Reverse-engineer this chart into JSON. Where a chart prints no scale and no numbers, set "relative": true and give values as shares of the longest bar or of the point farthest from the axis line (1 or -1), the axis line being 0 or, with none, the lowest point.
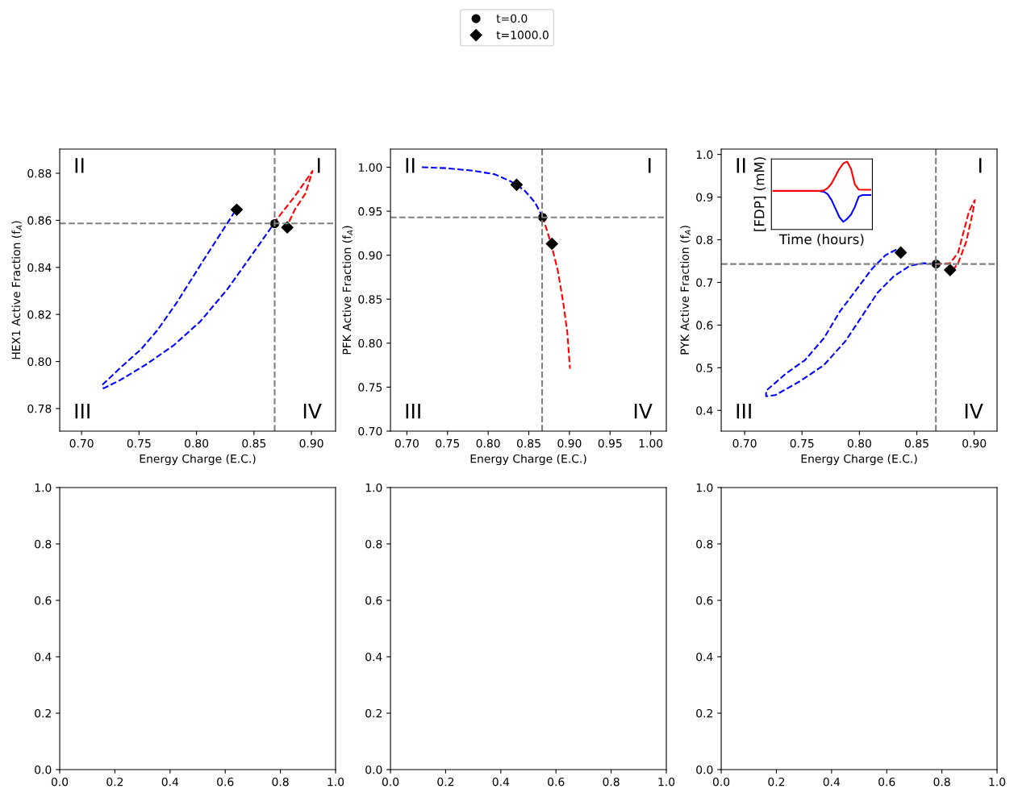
{
  "chart_data": [
    {
      "type": "line",
      "xlabel": "Energy Charge (E.C.)",
      "ylabel": "HEX1 Active Fraction (f$_{A}$)",
      "legend": "top",
      "xlim": [
        0.681,
        0.921
      ],
      "ylim": [
        0.7704,
        0.8903
      ],
      "xticks": [
        {
          "value": 0.7,
          "label": "0.70"
        },
        {
          "value": 0.75,
          "label": "0.75"
        },
        {
          "value": 0.8,
          "label": "0.80"
        },
        {
          "value": 0.85,
          "label": "0.85"
        },
        {
          "value": 0.9,
          "label": "0.90"
        }
      ],
      "yticks": [
        {
          "value": 0.78,
          "label": "0.78"
        },
        {
          "value": 0.8,
          "label": "0.80"
        },
        {
          "value": 0.82,
          "label": "0.82"
        },
        {
          "value": 0.84,
          "label": "0.84"
        },
        {
          "value": 0.86,
          "label": "0.86"
        },
        {
          "value": 0.88,
          "label": "0.88"
        }
      ],
      "ref_lines": [
        {
          "axis": "x",
          "value": 0.868,
          "color": "#808080",
          "line_style": "dashed"
        },
        {
          "axis": "y",
          "value": 0.8587,
          "color": "#808080",
          "line_style": "dashed"
        }
      ],
      "annotations": [
        "II",
        "I",
        "III",
        "IV"
      ],
      "series": [
        {
          "type": "line",
          "color": "#0000ff",
          "line_style": "dashed",
          "x": [
            0.8335,
            0.827,
            0.806,
            0.7824,
            0.766,
            0.752,
            0.7333,
            0.718,
            0.7192,
            0.7333,
            0.7567,
            0.78,
            0.8035,
            0.827,
            0.8503,
            0.8672
          ],
          "values": [
            0.8639,
            0.8589,
            0.843,
            0.8247,
            0.8133,
            0.8053,
            0.7971,
            0.79,
            0.7886,
            0.792,
            0.7989,
            0.8068,
            0.8171,
            0.8308,
            0.8468,
            0.8585
          ]
        },
        {
          "type": "line",
          "color": "#ff0000",
          "line_style": "dashed",
          "x": [
            0.8672,
            0.869,
            0.8855,
            0.901,
            0.8948,
            0.8855,
            0.8789
          ],
          "values": [
            0.8585,
            0.8599,
            0.8702,
            0.881,
            0.8714,
            0.8645,
            0.8576
          ]
        },
        {
          "type": "scatter",
          "name": "t=0.0",
          "color": "#000000",
          "marker": "circle",
          "x": [
            0.868
          ],
          "values": [
            0.8586
          ]
        },
        {
          "type": "scatter",
          "name": "t=1000.0",
          "color": "#000000",
          "marker": "diamond",
          "x": [
            0.835,
            0.879
          ],
          "values": [
            0.8645,
            0.857
          ]
        }
      ]
    },
    {
      "type": "line",
      "xlabel": "Energy Charge (E.C.)",
      "ylabel": "PFK Active Fraction (f$_{A}$)",
      "xlim": [
        0.6798,
        1.0192
      ],
      "ylim": [
        0.7,
        1.0207
      ],
      "xticks": [
        {
          "value": 0.7,
          "label": "0.70"
        },
        {
          "value": 0.75,
          "label": "0.75"
        },
        {
          "value": 0.8,
          "label": "0.80"
        },
        {
          "value": 0.85,
          "label": "0.85"
        },
        {
          "value": 0.9,
          "label": "0.90"
        },
        {
          "value": 0.95,
          "label": "0.95"
        },
        {
          "value": 1.0,
          "label": "1.00"
        }
      ],
      "yticks": [
        {
          "value": 0.7,
          "label": "0.70"
        },
        {
          "value": 0.75,
          "label": "0.75"
        },
        {
          "value": 0.8,
          "label": "0.80"
        },
        {
          "value": 0.85,
          "label": "0.85"
        },
        {
          "value": 0.9,
          "label": "0.90"
        },
        {
          "value": 0.95,
          "label": "0.95"
        },
        {
          "value": 1.0,
          "label": "1.00"
        }
      ],
      "ref_lines": [
        {
          "axis": "x",
          "value": 0.8664,
          "color": "#808080",
          "line_style": "dashed"
        },
        {
          "axis": "y",
          "value": 0.943,
          "color": "#808080",
          "line_style": "dashed"
        }
      ],
      "annotations": [
        "II",
        "I",
        "III",
        "IV"
      ],
      "series": [
        {
          "type": "line",
          "color": "#0000ff",
          "line_style": "dashed",
          "x": [
            0.7185,
            0.7483,
            0.7815,
            0.808,
            0.8278,
            0.8444,
            0.8576,
            0.8666
          ],
          "values": [
            1.0,
            0.999,
            0.996,
            0.992,
            0.984,
            0.974,
            0.96,
            0.944
          ]
        },
        {
          "type": "line",
          "color": "#ff0000",
          "line_style": "dashed",
          "x": [
            0.8666,
            0.8725,
            0.8791,
            0.8858,
            0.8924,
            0.8974,
            0.9007
          ],
          "values": [
            0.944,
            0.928,
            0.907,
            0.882,
            0.846,
            0.812,
            0.771
          ]
        },
        {
          "type": "scatter",
          "color": "#000000",
          "marker": "circle",
          "x": [
            0.867
          ],
          "values": [
            0.943
          ]
        },
        {
          "type": "scatter",
          "color": "#000000",
          "marker": "diamond",
          "x": [
            0.835,
            0.8785
          ],
          "values": [
            0.98,
            0.913
          ]
        }
      ]
    },
    {
      "type": "line",
      "xlabel": "Energy Charge (E.C.)",
      "ylabel": "PYK Active Fraction (f$_{A}$)",
      "xlim": [
        0.6796,
        0.9199
      ],
      "ylim": [
        0.3515,
        1.0126
      ],
      "xticks": [
        {
          "value": 0.7,
          "label": "0.70"
        },
        {
          "value": 0.75,
          "label": "0.75"
        },
        {
          "value": 0.8,
          "label": "0.80"
        },
        {
          "value": 0.85,
          "label": "0.85"
        },
        {
          "value": 0.9,
          "label": "0.90"
        }
      ],
      "yticks": [
        0.4,
        0.5,
        0.6,
        0.7,
        0.8,
        0.9,
        {
          "value": 1.0,
          "label": "1.0"
        }
      ],
      "ref_lines": [
        {
          "axis": "x",
          "value": 0.8666,
          "color": "#808080",
          "line_style": "dashed"
        },
        {
          "axis": "y",
          "value": 0.7431,
          "color": "#808080",
          "line_style": "dashed"
        }
      ],
      "annotations": [
        "II",
        "I",
        "III",
        "IV"
      ],
      "series": [
        {
          "type": "line",
          "color": "#0000ff",
          "line_style": "dashed",
          "x": [
            0.8322,
            0.8228,
            0.811,
            0.7971,
            0.783,
            0.769,
            0.7526,
            0.7363,
            0.7187,
            0.7187,
            0.7269,
            0.748,
            0.769,
            0.7877,
            0.8018,
            0.8158,
            0.8298,
            0.8439,
            0.8556,
            0.8666
          ],
          "values": [
            0.777,
            0.764,
            0.732,
            0.682,
            0.632,
            0.569,
            0.518,
            0.487,
            0.446,
            0.433,
            0.436,
            0.468,
            0.506,
            0.562,
            0.619,
            0.676,
            0.714,
            0.739,
            0.745,
            0.743
          ]
        },
        {
          "type": "line",
          "color": "#ff0000",
          "line_style": "dashed",
          "x": [
            0.8666,
            0.8789,
            0.886,
            0.8953,
            0.9005,
            0.8988,
            0.893,
            0.886,
            0.8813
          ],
          "values": [
            0.743,
            0.745,
            0.77,
            0.865,
            0.893,
            0.865,
            0.795,
            0.745,
            0.729
          ]
        },
        {
          "type": "scatter",
          "color": "#000000",
          "marker": "circle",
          "x": [
            0.8668
          ],
          "values": [
            0.743
          ]
        },
        {
          "type": "scatter",
          "color": "#000000",
          "marker": "diamond",
          "x": [
            0.836,
            0.879
          ],
          "values": [
            0.77,
            0.729
          ]
        }
      ]
    },
    {
      "type": "line",
      "relative": true,
      "tick_labels": false,
      "xlabel": "Time (hours)",
      "ylabel": "[FDP] (mM)",
      "categories": [
        null,
        null,
        null,
        null,
        null,
        null,
        null,
        null,
        null,
        null,
        null,
        null,
        null,
        null,
        null,
        null,
        null,
        null,
        null,
        null,
        null,
        null,
        null,
        null,
        null,
        null
      ],
      "series": [
        {
          "color": "#0000ff",
          "line_style": "solid",
          "values": [
            null,
            null,
            null,
            null,
            null,
            null,
            null,
            null,
            null,
            null,
            null,
            null,
            0.565,
            0.556,
            0.52,
            0.432,
            0.307,
            0.183,
            0.112,
            0.156,
            0.219,
            0.334,
            0.485,
            0.508,
            0.508,
            0.508
          ]
        },
        {
          "color": "#ff0000",
          "line_style": "solid",
          "values": [
            0.568,
            0.568,
            0.568,
            0.568,
            0.568,
            0.568,
            0.568,
            0.568,
            0.568,
            0.568,
            0.568,
            0.568,
            0.568,
            0.574,
            0.609,
            0.68,
            0.787,
            0.893,
            0.973,
            1.0,
            0.893,
            0.663,
            0.587,
            0.584,
            0.584,
            0.584
          ]
        }
      ]
    },
    {
      "type": "line",
      "xlim": [
        0,
        1
      ],
      "ylim": [
        0,
        1
      ],
      "xticks": [
        {
          "value": 0,
          "label": "0.0"
        },
        {
          "value": 0.2,
          "label": "0.2"
        },
        {
          "value": 0.4,
          "label": "0.4"
        },
        {
          "value": 0.6,
          "label": "0.6"
        },
        {
          "value": 0.8,
          "label": "0.8"
        },
        {
          "value": 1,
          "label": "1.0"
        }
      ],
      "yticks": [
        {
          "value": 0,
          "label": "0.0"
        },
        {
          "value": 0.2,
          "label": "0.2"
        },
        {
          "value": 0.4,
          "label": "0.4"
        },
        {
          "value": 0.6,
          "label": "0.6"
        },
        {
          "value": 0.8,
          "label": "0.8"
        },
        {
          "value": 1,
          "label": "1.0"
        }
      ]
    },
    {
      "type": "line",
      "xlim": [
        0,
        1
      ],
      "ylim": [
        0,
        1
      ],
      "xticks": [
        {
          "value": 0,
          "label": "0.0"
        },
        {
          "value": 0.2,
          "label": "0.2"
        },
        {
          "value": 0.4,
          "label": "0.4"
        },
        {
          "value": 0.6,
          "label": "0.6"
        },
        {
          "value": 0.8,
          "label": "0.8"
        },
        {
          "value": 1,
          "label": "1.0"
        }
      ],
      "yticks": [
        {
          "value": 0,
          "label": "0.0"
        },
        {
          "value": 0.2,
          "label": "0.2"
        },
        {
          "value": 0.4,
          "label": "0.4"
        },
        {
          "value": 0.6,
          "label": "0.6"
        },
        {
          "value": 0.8,
          "label": "0.8"
        },
        {
          "value": 1,
          "label": "1.0"
        }
      ]
    },
    {
      "type": "line",
      "xlim": [
        0,
        1
      ],
      "ylim": [
        0,
        1
      ],
      "xticks": [
        {
          "value": 0,
          "label": "0.0"
        },
        {
          "value": 0.2,
          "label": "0.2"
        },
        {
          "value": 0.4,
          "label": "0.4"
        },
        {
          "value": 0.6,
          "label": "0.6"
        },
        {
          "value": 0.8,
          "label": "0.8"
        },
        {
          "value": 1,
          "label": "1.0"
        }
      ],
      "yticks": [
        {
          "value": 0,
          "label": "0.0"
        },
        {
          "value": 0.2,
          "label": "0.2"
        },
        {
          "value": 0.4,
          "label": "0.4"
        },
        {
          "value": 0.6,
          "label": "0.6"
        },
        {
          "value": 0.8,
          "label": "0.8"
        },
        {
          "value": 1,
          "label": "1.0"
        }
      ]
    }
  ]
}
